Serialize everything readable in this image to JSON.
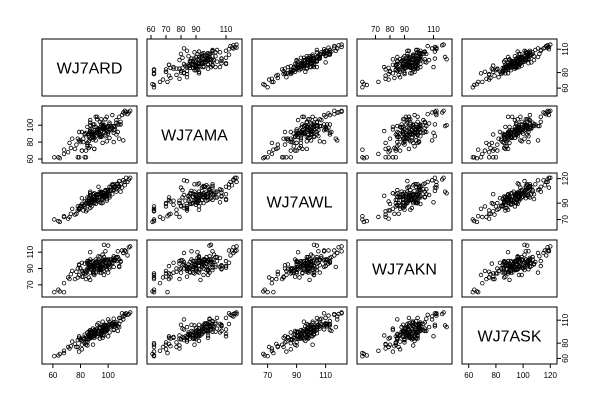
{
  "chart_data": {
    "type": "scatter",
    "layout": "scatterplot-matrix",
    "variables": [
      "WJ7ARD",
      "WJ7AMA",
      "WJ7AWL",
      "WJ7AKN",
      "WJ7ASK"
    ],
    "ranges": {
      "WJ7ARD": [
        55,
        118
      ],
      "WJ7AMA": [
        60,
        118
      ],
      "WJ7AWL": [
        62,
        122
      ],
      "WJ7AKN": [
        60,
        120
      ],
      "WJ7ASK": [
        58,
        122
      ]
    },
    "axis_ticks": {
      "top": [
        {
          "column": 1,
          "variable": "WJ7AMA",
          "ticks": [
            60,
            70,
            80,
            90,
            110
          ]
        },
        {
          "column": 3,
          "variable": "WJ7AKN",
          "ticks": [
            70,
            80,
            90,
            110
          ]
        }
      ],
      "bottom": [
        {
          "column": 0,
          "variable": "WJ7ARD",
          "ticks": [
            60,
            80,
            100
          ]
        },
        {
          "column": 2,
          "variable": "WJ7AWL",
          "ticks": [
            70,
            90,
            110
          ]
        },
        {
          "column": 4,
          "variable": "WJ7ASK",
          "ticks": [
            60,
            80,
            100,
            120
          ]
        }
      ],
      "left": [
        {
          "row": 1,
          "variable": "WJ7AMA",
          "ticks": [
            60,
            80,
            100
          ]
        },
        {
          "row": 3,
          "variable": "WJ7AKN",
          "ticks": [
            70,
            90,
            110
          ]
        }
      ],
      "right": [
        {
          "row": 0,
          "variable": "WJ7ARD",
          "ticks": [
            60,
            80,
            110
          ]
        },
        {
          "row": 2,
          "variable": "WJ7AWL",
          "ticks": [
            70,
            90,
            120
          ]
        },
        {
          "row": 4,
          "variable": "WJ7ASK",
          "ticks": [
            60,
            80,
            110
          ]
        }
      ]
    },
    "observations": [
      [
        95,
        86,
        102,
        85,
        92
      ],
      [
        89,
        89,
        101,
        84,
        78
      ],
      [
        84,
        70,
        90,
        84,
        81
      ],
      [
        85,
        79,
        90,
        96,
        77
      ],
      [
        96,
        79,
        90,
        89,
        90
      ],
      [
        102,
        95,
        110,
        98,
        104
      ],
      [
        97,
        98,
        98,
        87,
        90
      ],
      [
        85,
        77,
        82,
        90,
        81
      ],
      [
        100,
        90,
        100,
        94,
        89
      ],
      [
        94,
        88,
        98,
        85,
        86
      ],
      [
        88,
        90,
        95,
        89,
        96
      ],
      [
        90,
        98,
        102,
        82,
        97
      ],
      [
        87,
        93,
        99,
        76,
        90
      ],
      [
        74,
        84,
        83,
        87,
        82
      ],
      [
        96,
        98,
        98,
        98,
        87
      ],
      [
        81,
        70,
        86,
        87,
        72
      ],
      [
        95,
        89,
        104,
        92,
        93
      ],
      [
        81,
        92,
        96,
        97,
        83
      ],
      [
        92,
        110,
        101,
        99,
        89
      ],
      [
        104,
        91,
        113,
        103,
        97
      ],
      [
        103,
        97,
        101,
        96,
        106
      ],
      [
        73,
        73,
        77,
        83,
        76
      ],
      [
        90,
        85,
        98,
        95,
        92
      ],
      [
        98,
        95,
        97,
        101,
        99
      ],
      [
        88,
        95,
        90,
        98,
        95
      ],
      [
        98,
        89,
        100,
        96,
        95
      ],
      [
        94,
        86,
        91,
        98,
        86
      ],
      [
        87,
        84,
        84,
        89,
        88
      ],
      [
        98,
        87,
        105,
        111,
        104
      ],
      [
        87,
        91,
        91,
        110,
        89
      ],
      [
        83,
        89,
        92,
        96,
        86
      ],
      [
        81,
        70,
        89,
        80,
        78
      ],
      [
        86,
        88,
        90,
        99,
        95
      ],
      [
        87,
        100,
        104,
        101,
        97
      ],
      [
        72,
        79,
        73,
        77,
        73
      ],
      [
        97,
        95,
        97,
        100,
        95
      ],
      [
        79,
        92,
        82,
        94,
        89
      ],
      [
        107,
        92,
        114,
        104,
        96
      ],
      [
        90,
        72,
        97,
        93,
        87
      ],
      [
        97,
        95,
        102,
        82,
        99
      ],
      [
        104,
        99,
        106,
        101,
        107
      ],
      [
        87,
        103,
        102,
        94,
        95
      ],
      [
        91,
        98,
        94,
        89,
        96
      ],
      [
        88,
        85,
        93,
        92,
        91
      ],
      [
        95,
        107,
        103,
        90,
        96
      ],
      [
        83,
        90,
        88,
        87,
        91
      ],
      [
        96,
        99,
        95,
        95,
        108
      ],
      [
        103,
        97,
        112,
        96,
        103
      ],
      [
        92,
        94,
        100,
        95,
        98
      ],
      [
        101,
        101,
        101,
        96,
        108
      ],
      [
        86,
        90,
        95,
        95,
        85
      ],
      [
        91,
        87,
        89,
        101,
        96
      ],
      [
        100,
        99,
        106,
        85,
        111
      ],
      [
        106,
        89,
        113,
        99,
        103
      ],
      [
        79,
        82,
        84,
        95,
        87
      ],
      [
        85,
        79,
        93,
        99,
        86
      ],
      [
        90,
        90,
        91,
        89,
        95
      ],
      [
        98,
        107,
        106,
        94,
        102
      ],
      [
        101,
        96,
        110,
        101,
        105
      ],
      [
        82,
        84,
        81,
        80,
        87
      ],
      [
        84,
        91,
        90,
        86,
        89
      ],
      [
        93,
        96,
        110,
        93,
        106
      ],
      [
        95,
        87,
        102,
        93,
        91
      ],
      [
        89,
        89,
        94,
        95,
        89
      ],
      [
        95,
        101,
        101,
        88,
        95
      ],
      [
        88,
        89,
        94,
        94,
        87
      ],
      [
        102,
        99,
        106,
        101,
        102
      ],
      [
        96,
        96,
        99,
        101,
        97
      ],
      [
        91,
        82,
        100,
        98,
        98
      ],
      [
        78,
        84,
        86,
        90,
        84
      ],
      [
        101,
        103,
        97,
        92,
        105
      ],
      [
        90,
        101,
        94,
        94,
        95
      ],
      [
        94,
        90,
        98,
        91,
        100
      ],
      [
        86,
        88,
        90,
        90,
        86
      ],
      [
        104,
        94,
        109,
        92,
        98
      ],
      [
        93,
        94,
        94,
        98,
        92
      ],
      [
        90,
        88,
        90,
        92,
        90
      ],
      [
        96,
        100,
        96,
        96,
        102
      ],
      [
        88,
        92,
        86,
        89,
        94
      ],
      [
        99,
        93,
        101,
        89,
        96
      ],
      [
        92,
        91,
        93,
        97,
        93
      ],
      [
        107,
        101,
        109,
        111,
        102
      ],
      [
        85,
        98,
        97,
        88,
        94
      ],
      [
        91,
        92,
        94,
        85,
        91
      ],
      [
        89,
        101,
        101,
        91,
        99
      ],
      [
        97,
        92,
        100,
        99,
        104
      ],
      [
        87,
        95,
        100,
        98,
        94
      ],
      [
        86,
        81,
        97,
        94,
        88
      ],
      [
        89,
        86,
        97,
        86,
        89
      ],
      [
        99,
        97,
        93,
        92,
        97
      ],
      [
        92,
        107,
        98,
        89,
        104
      ],
      [
        94,
        95,
        98,
        90,
        100
      ],
      [
        68,
        71,
        74,
        61,
        67
      ],
      [
        76,
        72,
        76,
        77,
        79
      ],
      [
        68,
        66,
        73,
        72,
        70
      ],
      [
        77,
        77,
        77,
        86,
        75
      ],
      [
        71,
        68,
        71,
        79,
        75
      ],
      [
        108,
        110,
        110,
        93,
        113
      ],
      [
        109,
        104,
        104,
        99,
        113
      ],
      [
        64,
        62,
        68,
        64,
        64
      ],
      [
        65,
        61,
        67,
        62,
        66
      ],
      [
        112,
        117,
        116,
        112,
        118
      ],
      [
        110,
        112,
        109,
        112,
        119
      ],
      [
        115,
        115,
        119,
        116,
        118
      ],
      [
        112,
        114,
        112,
        112,
        116
      ],
      [
        111,
        115,
        118,
        109,
        115
      ],
      [
        113,
        116,
        121,
        111,
        119
      ],
      [
        114,
        113,
        116,
        106,
        117
      ],
      [
        116,
        117,
        121,
        117,
        120
      ],
      [
        100,
        99,
        104,
        118,
        103
      ],
      [
        97,
        100,
        102,
        119,
        101
      ],
      [
        94,
        97,
        104,
        88,
        101
      ],
      [
        94,
        104,
        97,
        104,
        99
      ],
      [
        105,
        98,
        110,
        100,
        105
      ],
      [
        106,
        103,
        104,
        104,
        107
      ],
      [
        99,
        110,
        95,
        93,
        98
      ],
      [
        98,
        107,
        99,
        93,
        103
      ],
      [
        101,
        94,
        105,
        97,
        101
      ],
      [
        103,
        112,
        113,
        97,
        105
      ],
      [
        109,
        101,
        113,
        98,
        109
      ],
      [
        108,
        101,
        111,
        101,
        105
      ],
      [
        104,
        99,
        107,
        105,
        112
      ],
      [
        105,
        95,
        111,
        101,
        102
      ],
      [
        106,
        106,
        107,
        103,
        105
      ],
      [
        79,
        62,
        83,
        82,
        69
      ],
      [
        84,
        62,
        80,
        77,
        78
      ],
      [
        78,
        62,
        81,
        79,
        75
      ],
      [
        61,
        62,
        70,
        61,
        63
      ],
      [
        80,
        80,
        86,
        90,
        85
      ],
      [
        83,
        62,
        86,
        84,
        80
      ],
      [
        91,
        110,
        94,
        91,
        92
      ],
      [
        87,
        106,
        91,
        92,
        94
      ],
      [
        111,
        82,
        118,
        109,
        111
      ],
      [
        104,
        80,
        109,
        100,
        104
      ],
      [
        108,
        84,
        117,
        92,
        101
      ],
      [
        99,
        81,
        106,
        100,
        99
      ],
      [
        101,
        85,
        99,
        90,
        94
      ],
      [
        90,
        72,
        94,
        84,
        89
      ],
      [
        87,
        75,
        88,
        85,
        87
      ],
      [
        86,
        73,
        92,
        79,
        86
      ],
      [
        85,
        75,
        93,
        97,
        88
      ],
      [
        97,
        97,
        98,
        104,
        96
      ],
      [
        93,
        95,
        97,
        95,
        96
      ],
      [
        86,
        86,
        89,
        91,
        91
      ],
      [
        99,
        98,
        102,
        100,
        100
      ],
      [
        100,
        92,
        104,
        101,
        99
      ],
      [
        89,
        91,
        95,
        99,
        91
      ],
      [
        92,
        92,
        93,
        93,
        92
      ],
      [
        93,
        92,
        101,
        105,
        96
      ],
      [
        96,
        102,
        100,
        107,
        101
      ],
      [
        97,
        97,
        97,
        99,
        97
      ],
      [
        95,
        93,
        90,
        99,
        94
      ],
      [
        89,
        83,
        93,
        93,
        89
      ],
      [
        80,
        82,
        87,
        90,
        84
      ],
      [
        82,
        80,
        87,
        85,
        85
      ]
    ]
  }
}
